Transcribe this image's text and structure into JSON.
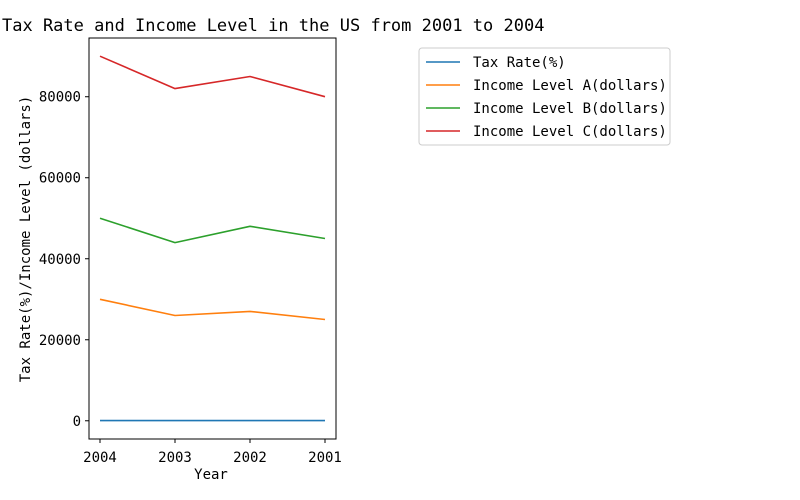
{
  "chart_data": {
    "type": "line",
    "title": "Tax Rate and Income Level in the US from 2001 to 2004",
    "xlabel": "Year",
    "ylabel": "Tax Rate(%)/Income Level (dollars)",
    "categories": [
      "2004",
      "2003",
      "2002",
      "2001"
    ],
    "ylim": [
      -4500,
      94500
    ],
    "yticks": [
      0,
      20000,
      40000,
      60000,
      80000
    ],
    "grid": false,
    "legend_position": "top-right",
    "series": [
      {
        "name": "Tax Rate(%)",
        "color": "#1f77b4",
        "values": [
          35,
          35,
          38,
          39
        ]
      },
      {
        "name": "Income Level A(dollars)",
        "color": "#ff7f0e",
        "values": [
          30000,
          26000,
          27000,
          25000
        ]
      },
      {
        "name": "Income Level B(dollars)",
        "color": "#2ca02c",
        "values": [
          50000,
          44000,
          48000,
          45000
        ]
      },
      {
        "name": "Income Level C(dollars)",
        "color": "#d62728",
        "values": [
          90000,
          82000,
          85000,
          80000
        ]
      }
    ]
  }
}
